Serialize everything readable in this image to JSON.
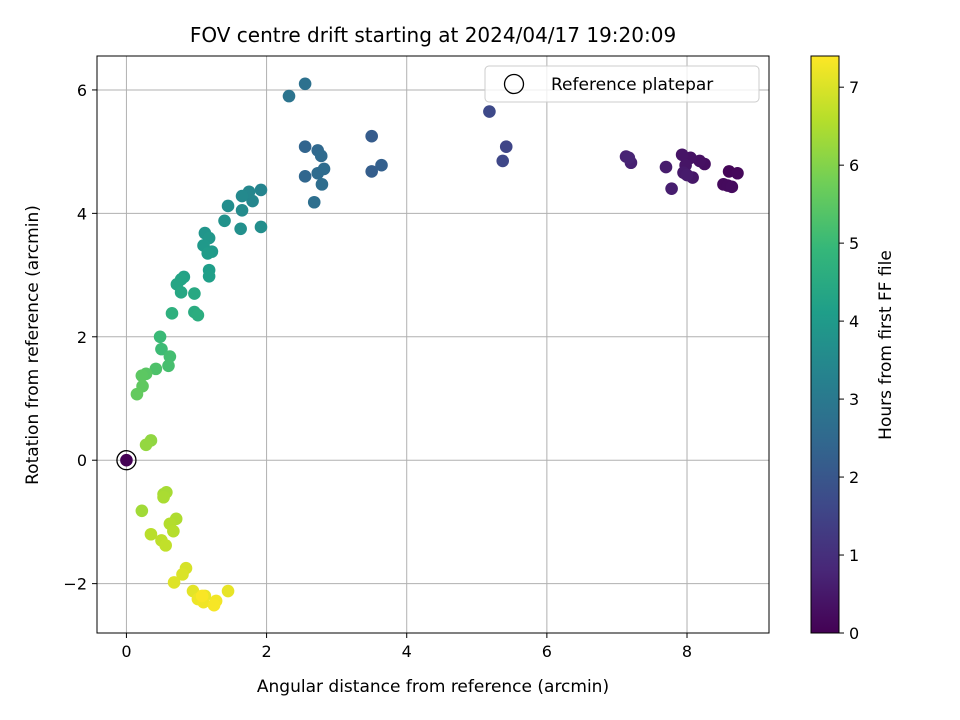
{
  "chart_data": {
    "type": "scatter",
    "title": "FOV centre drift starting at 2024/04/17 19:20:09",
    "xlabel": "Angular distance from reference (arcmin)",
    "ylabel": "Rotation from reference (arcmin)",
    "xlim": [
      -0.42,
      9.17
    ],
    "ylim": [
      -2.8,
      6.55
    ],
    "xticks": [
      0,
      2,
      4,
      6,
      8
    ],
    "yticks": [
      -2,
      0,
      2,
      4,
      6
    ],
    "xtick_labels": [
      "0",
      "2",
      "4",
      "6",
      "8"
    ],
    "ytick_labels": [
      "−2",
      "0",
      "2",
      "4",
      "6"
    ],
    "grid": true,
    "legend": {
      "placement": "top-right",
      "entries": [
        "Reference platepar"
      ]
    },
    "reference_point": {
      "x": 0,
      "y": 0,
      "label": "Reference platepar"
    },
    "colorbar": {
      "label": "Hours from first FF file",
      "colormap": "viridis",
      "range": [
        0,
        7.4
      ],
      "ticks": [
        0,
        1,
        2,
        3,
        4,
        5,
        6,
        7
      ],
      "tick_labels": [
        "0",
        "1",
        "2",
        "3",
        "4",
        "5",
        "6",
        "7"
      ]
    },
    "colormap_stops": [
      "#440154",
      "#482878",
      "#3e4989",
      "#31688e",
      "#26828e",
      "#1f9e89",
      "#35b779",
      "#6ece58",
      "#b5de2b",
      "#fde725"
    ],
    "points": [
      {
        "x": 8.6,
        "y": 4.68,
        "hours": 0.1
      },
      {
        "x": 8.72,
        "y": 4.65,
        "hours": 0.14
      },
      {
        "x": 8.52,
        "y": 4.47,
        "hours": 0.18
      },
      {
        "x": 8.58,
        "y": 4.45,
        "hours": 0.2
      },
      {
        "x": 8.64,
        "y": 4.43,
        "hours": 0.22
      },
      {
        "x": 8.25,
        "y": 4.8,
        "hours": 0.28
      },
      {
        "x": 8.18,
        "y": 4.85,
        "hours": 0.32
      },
      {
        "x": 8.05,
        "y": 4.9,
        "hours": 0.36
      },
      {
        "x": 7.93,
        "y": 4.95,
        "hours": 0.4
      },
      {
        "x": 7.98,
        "y": 4.78,
        "hours": 0.42
      },
      {
        "x": 8.08,
        "y": 4.58,
        "hours": 0.46
      },
      {
        "x": 7.95,
        "y": 4.66,
        "hours": 0.5
      },
      {
        "x": 8.0,
        "y": 4.62,
        "hours": 0.54
      },
      {
        "x": 7.7,
        "y": 4.75,
        "hours": 0.58
      },
      {
        "x": 7.78,
        "y": 4.4,
        "hours": 0.62
      },
      {
        "x": 7.2,
        "y": 4.82,
        "hours": 0.68
      },
      {
        "x": 7.13,
        "y": 4.92,
        "hours": 0.72
      },
      {
        "x": 7.17,
        "y": 4.9,
        "hours": 0.76
      },
      {
        "x": 5.42,
        "y": 5.08,
        "hours": 1.55
      },
      {
        "x": 5.37,
        "y": 4.85,
        "hours": 1.6
      },
      {
        "x": 5.18,
        "y": 5.65,
        "hours": 1.65
      },
      {
        "x": 3.5,
        "y": 5.25,
        "hours": 2.15
      },
      {
        "x": 3.5,
        "y": 4.68,
        "hours": 2.2
      },
      {
        "x": 3.64,
        "y": 4.78,
        "hours": 2.25
      },
      {
        "x": 2.55,
        "y": 5.08,
        "hours": 2.4
      },
      {
        "x": 2.55,
        "y": 4.6,
        "hours": 2.45
      },
      {
        "x": 2.73,
        "y": 5.02,
        "hours": 2.5
      },
      {
        "x": 2.78,
        "y": 4.93,
        "hours": 2.55
      },
      {
        "x": 2.73,
        "y": 4.65,
        "hours": 2.58
      },
      {
        "x": 2.82,
        "y": 4.72,
        "hours": 2.6
      },
      {
        "x": 2.79,
        "y": 4.47,
        "hours": 2.65
      },
      {
        "x": 2.68,
        "y": 4.18,
        "hours": 2.7
      },
      {
        "x": 2.55,
        "y": 6.1,
        "hours": 2.75
      },
      {
        "x": 2.32,
        "y": 5.9,
        "hours": 2.85
      },
      {
        "x": 1.92,
        "y": 4.38,
        "hours": 3.35
      },
      {
        "x": 1.8,
        "y": 4.2,
        "hours": 3.4
      },
      {
        "x": 1.75,
        "y": 4.35,
        "hours": 3.45
      },
      {
        "x": 1.65,
        "y": 4.28,
        "hours": 3.5
      },
      {
        "x": 1.65,
        "y": 4.05,
        "hours": 3.55
      },
      {
        "x": 1.45,
        "y": 4.12,
        "hours": 3.6
      },
      {
        "x": 1.92,
        "y": 3.78,
        "hours": 3.65
      },
      {
        "x": 1.63,
        "y": 3.75,
        "hours": 3.7
      },
      {
        "x": 1.4,
        "y": 3.88,
        "hours": 3.75
      },
      {
        "x": 1.12,
        "y": 3.68,
        "hours": 3.85
      },
      {
        "x": 1.18,
        "y": 3.6,
        "hours": 3.9
      },
      {
        "x": 1.1,
        "y": 3.48,
        "hours": 3.95
      },
      {
        "x": 1.22,
        "y": 3.38,
        "hours": 4.0
      },
      {
        "x": 1.16,
        "y": 3.35,
        "hours": 4.05
      },
      {
        "x": 1.18,
        "y": 3.08,
        "hours": 4.1
      },
      {
        "x": 1.18,
        "y": 2.98,
        "hours": 4.15
      },
      {
        "x": 0.82,
        "y": 2.97,
        "hours": 4.25
      },
      {
        "x": 0.78,
        "y": 2.93,
        "hours": 4.3
      },
      {
        "x": 0.72,
        "y": 2.85,
        "hours": 4.35
      },
      {
        "x": 0.78,
        "y": 2.72,
        "hours": 4.4
      },
      {
        "x": 0.97,
        "y": 2.7,
        "hours": 4.45
      },
      {
        "x": 0.97,
        "y": 2.4,
        "hours": 4.55
      },
      {
        "x": 1.02,
        "y": 2.35,
        "hours": 4.6
      },
      {
        "x": 0.65,
        "y": 2.38,
        "hours": 4.7
      },
      {
        "x": 0.48,
        "y": 2.0,
        "hours": 5.0
      },
      {
        "x": 0.5,
        "y": 1.8,
        "hours": 5.05
      },
      {
        "x": 0.62,
        "y": 1.68,
        "hours": 5.15
      },
      {
        "x": 0.6,
        "y": 1.53,
        "hours": 5.2
      },
      {
        "x": 0.42,
        "y": 1.48,
        "hours": 5.3
      },
      {
        "x": 0.28,
        "y": 1.4,
        "hours": 5.45
      },
      {
        "x": 0.22,
        "y": 1.37,
        "hours": 5.5
      },
      {
        "x": 0.23,
        "y": 1.2,
        "hours": 5.55
      },
      {
        "x": 0.15,
        "y": 1.07,
        "hours": 5.6
      },
      {
        "x": 0.35,
        "y": 0.32,
        "hours": 6.15
      },
      {
        "x": 0.28,
        "y": 0.25,
        "hours": 6.2
      },
      {
        "x": 0.22,
        "y": -0.82,
        "hours": 6.35
      },
      {
        "x": 0.53,
        "y": -0.55,
        "hours": 6.4
      },
      {
        "x": 0.57,
        "y": -0.52,
        "hours": 6.42
      },
      {
        "x": 0.53,
        "y": -0.6,
        "hours": 6.45
      },
      {
        "x": 0.71,
        "y": -0.95,
        "hours": 6.5
      },
      {
        "x": 0.62,
        "y": -1.03,
        "hours": 6.55
      },
      {
        "x": 0.67,
        "y": -1.15,
        "hours": 6.58
      },
      {
        "x": 0.35,
        "y": -1.2,
        "hours": 6.62
      },
      {
        "x": 0.5,
        "y": -1.3,
        "hours": 6.68
      },
      {
        "x": 0.56,
        "y": -1.38,
        "hours": 6.72
      },
      {
        "x": 0.85,
        "y": -1.75,
        "hours": 6.95
      },
      {
        "x": 0.8,
        "y": -1.85,
        "hours": 7.0
      },
      {
        "x": 0.68,
        "y": -1.98,
        "hours": 7.05
      },
      {
        "x": 0.95,
        "y": -2.12,
        "hours": 7.1
      },
      {
        "x": 1.45,
        "y": -2.12,
        "hours": 7.15
      },
      {
        "x": 1.12,
        "y": -2.2,
        "hours": 7.18
      },
      {
        "x": 1.02,
        "y": -2.25,
        "hours": 7.22
      },
      {
        "x": 1.1,
        "y": -2.3,
        "hours": 7.25
      },
      {
        "x": 1.28,
        "y": -2.28,
        "hours": 7.28
      },
      {
        "x": 1.25,
        "y": -2.35,
        "hours": 7.32
      },
      {
        "x": 1.08,
        "y": -2.2,
        "hours": 7.35
      }
    ]
  }
}
